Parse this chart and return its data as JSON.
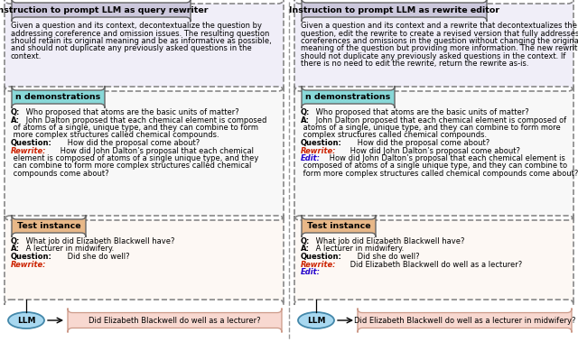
{
  "left_title": "Instruction to prompt LLM as query rewriter",
  "right_title": "Instruction to prompt LLM as rewrite editor",
  "left_instruction_lines": [
    "Given a question and its context, decontextualize the question by",
    "addressing coreference and omission issues. The resulting question",
    "should retain its original meaning and be as informative as possible,",
    "and should not duplicate any previously asked questions in the",
    "context."
  ],
  "right_instruction_lines": [
    "Given a question and its context and a rewrite that decontextualizes the",
    "question, edit the rewrite to create a revised version that fully addresses",
    "coreferences and omissions in the question without changing the original",
    "meaning of the question but providing more information. The new rewrite",
    "should not duplicate any previously asked questions in the context. If",
    "there is no need to edit the rewrite, return the rewrite as-is."
  ],
  "demo_label": "n demonstrations",
  "test_label": "Test instance",
  "left_output": "Did Elizabeth Blackwell do well as a lecturer?",
  "right_output": "Did Elizabeth Blackwell do well as a lecturer in midwifery?",
  "title_bg": "#ccc8dc",
  "demo_bg": "#88d8d8",
  "test_bg": "#e8b888",
  "output_bg": "#f8d8d0",
  "inst_box_bg": "#f0eef8",
  "demo_box_bg": "#f8f8f8",
  "test_box_bg": "#fdf8f4",
  "llm_bg": "#a8d8f0",
  "llm_border": "#4488aa",
  "box_border": "#888888",
  "rewrite_color": "#cc2200",
  "edit_color": "#2200cc"
}
